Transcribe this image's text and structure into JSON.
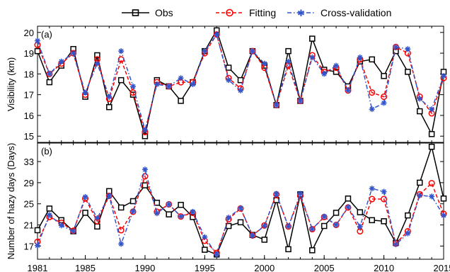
{
  "legend": {
    "position": "top-center",
    "items": [
      {
        "label": "Obs",
        "color": "#000000",
        "dash": "solid",
        "marker": "square"
      },
      {
        "label": "Fitting",
        "color": "#ff0000",
        "dash": "dashed",
        "marker": "circle"
      },
      {
        "label": "Cross-validation",
        "color": "#3355cc",
        "dash": "dashdot",
        "marker": "star"
      }
    ]
  },
  "chart_data": [
    {
      "type": "line",
      "panel_label": "(a)",
      "xlabel": "",
      "ylabel": "Visibility (km)",
      "xlim": [
        1981,
        2015
      ],
      "ylim": [
        14.7,
        20.3
      ],
      "yticks": [
        15,
        16,
        17,
        18,
        19,
        20
      ],
      "grid": false,
      "x": [
        1981,
        1982,
        1983,
        1984,
        1985,
        1986,
        1987,
        1988,
        1989,
        1990,
        1991,
        1992,
        1993,
        1994,
        1995,
        1996,
        1997,
        1998,
        1999,
        2000,
        2001,
        2002,
        2003,
        2004,
        2005,
        2006,
        2007,
        2008,
        2009,
        2010,
        2011,
        2012,
        2013,
        2014,
        2015
      ],
      "series": [
        {
          "name": "Obs",
          "values": [
            19.1,
            17.6,
            18.4,
            19.2,
            16.9,
            18.9,
            16.4,
            17.7,
            17.0,
            15.0,
            17.7,
            17.4,
            16.7,
            17.6,
            19.1,
            20.1,
            18.3,
            17.7,
            19.1,
            18.4,
            16.5,
            19.1,
            16.7,
            19.7,
            18.2,
            18.1,
            17.4,
            18.6,
            18.7,
            17.9,
            19.1,
            18.1,
            16.2,
            15.1,
            18.1
          ]
        },
        {
          "name": "Fitting",
          "values": [
            19.4,
            18.0,
            18.5,
            19.0,
            17.0,
            18.7,
            16.8,
            18.7,
            17.1,
            15.2,
            17.6,
            17.4,
            17.6,
            17.6,
            19.0,
            19.9,
            17.8,
            17.3,
            19.1,
            18.3,
            16.5,
            18.4,
            16.7,
            18.9,
            18.1,
            18.3,
            17.2,
            18.7,
            17.1,
            16.9,
            19.3,
            19.0,
            16.9,
            16.1,
            17.8
          ]
        },
        {
          "name": "Cross-validation",
          "values": [
            19.6,
            18.0,
            18.6,
            19.0,
            17.1,
            18.5,
            16.9,
            19.1,
            17.4,
            15.3,
            17.5,
            17.4,
            17.8,
            17.5,
            19.1,
            19.9,
            17.7,
            17.2,
            19.1,
            18.5,
            16.5,
            18.6,
            16.7,
            18.8,
            18.0,
            18.4,
            17.2,
            18.8,
            16.3,
            16.6,
            19.3,
            19.2,
            16.8,
            16.3,
            17.9
          ]
        }
      ]
    },
    {
      "type": "line",
      "panel_label": "(b)",
      "xlabel": "",
      "ylabel": "Number of hazy days (Days)",
      "xlim": [
        1981,
        2015
      ],
      "ylim": [
        14.5,
        36.5
      ],
      "yticks": [
        17,
        21,
        25,
        29,
        33
      ],
      "xticks": [
        1981,
        1985,
        1990,
        1995,
        2000,
        2005,
        2010,
        2015
      ],
      "grid": false,
      "x": [
        1981,
        1982,
        1983,
        1984,
        1985,
        1986,
        1987,
        1988,
        1989,
        1990,
        1991,
        1992,
        1993,
        1994,
        1995,
        1996,
        1997,
        1998,
        1999,
        2000,
        2001,
        2002,
        2003,
        2004,
        2005,
        2006,
        2007,
        2008,
        2009,
        2010,
        2011,
        2012,
        2013,
        2014,
        2015
      ],
      "series": [
        {
          "name": "Obs",
          "values": [
            20,
            24.1,
            21.9,
            19.8,
            23.3,
            20.7,
            27.4,
            24.3,
            25.5,
            28.5,
            25.2,
            23,
            24.8,
            22.5,
            16.3,
            15.4,
            20.8,
            21.5,
            19.1,
            18.2,
            25.7,
            16.4,
            26.8,
            16.2,
            20.8,
            23.3,
            26,
            23.4,
            21.9,
            21.7,
            17.6,
            22.8,
            29,
            35.8,
            26
          ]
        },
        {
          "name": "Fitting",
          "values": [
            17.8,
            22.5,
            21.4,
            19.9,
            26,
            21.7,
            26.5,
            20,
            23.5,
            30.2,
            23.5,
            24.9,
            22.6,
            23.3,
            18,
            15.7,
            22.1,
            24.1,
            19,
            20.9,
            26.8,
            20.7,
            26.5,
            20.2,
            22.5,
            21,
            24.3,
            19.8,
            25.9,
            25.9,
            17.5,
            19.8,
            26.8,
            28.9,
            23.1
          ]
        },
        {
          "name": "Cross-validation",
          "values": [
            17.1,
            22.9,
            20.9,
            19.8,
            26.3,
            22.3,
            26.5,
            17.4,
            23.6,
            31.5,
            23.2,
            24.9,
            22.6,
            23.5,
            18.7,
            15.4,
            22.4,
            24.2,
            19,
            20.8,
            26.9,
            20.7,
            26.9,
            20.2,
            22.6,
            21,
            24.4,
            20.7,
            27.9,
            27.3,
            17.3,
            19.4,
            26.6,
            26.4,
            22.8
          ]
        }
      ]
    }
  ]
}
